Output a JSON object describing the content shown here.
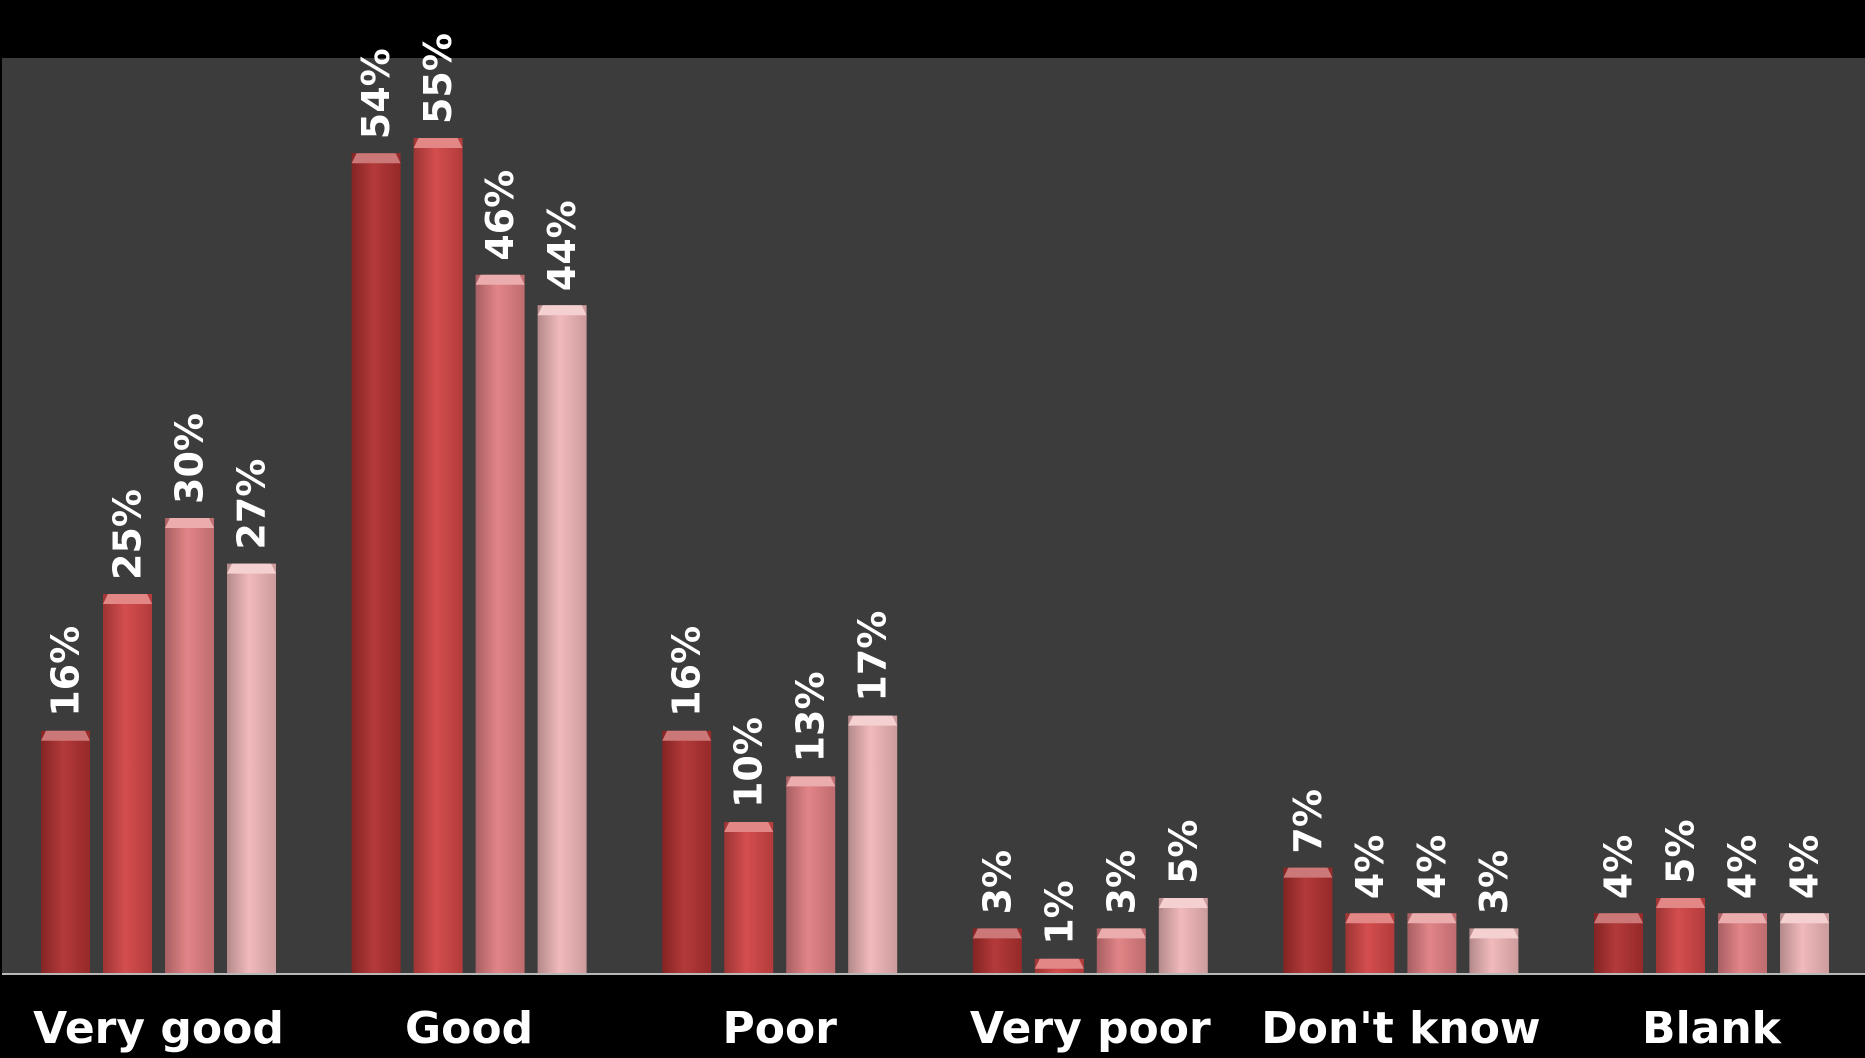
{
  "chart_data": {
    "type": "bar",
    "categories": [
      "Very good",
      "Good",
      "Poor",
      "Very poor",
      "Don't know",
      "Blank"
    ],
    "series": [
      {
        "values": [
          16,
          54,
          16,
          3,
          7,
          4
        ],
        "color": "#b03030"
      },
      {
        "values": [
          25,
          55,
          10,
          1,
          4,
          5
        ],
        "color": "#d24545"
      },
      {
        "values": [
          30,
          46,
          13,
          3,
          4,
          4
        ],
        "color": "#e07f82"
      },
      {
        "values": [
          27,
          44,
          17,
          5,
          3,
          4
        ],
        "color": "#f0b6b8"
      }
    ],
    "value_suffix": "%",
    "ylim": [
      0,
      59
    ],
    "grid": false,
    "legend": "none",
    "colors": {
      "page_background": "#000000",
      "plot_background": "#3c3c3c",
      "label_text": "#ffffff"
    }
  }
}
